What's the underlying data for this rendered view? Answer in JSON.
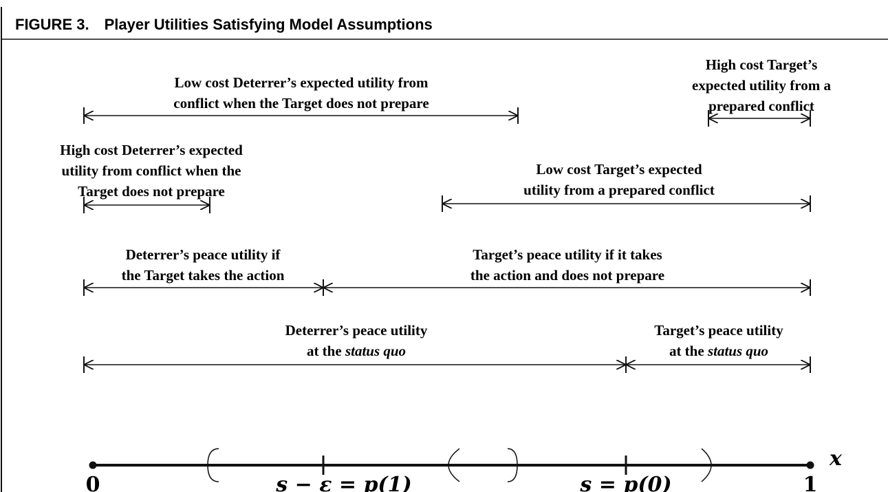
{
  "title": "FIGURE 3. Player Utilities Satisfying Model Assumptions",
  "annotations": [
    {
      "lines": [
        [
          "Low cost Deterrer’s expected utility from"
        ],
        [
          "conflict when the Target does not prepare"
        ]
      ]
    },
    {
      "lines": [
        [
          "High cost Target’s"
        ],
        [
          "expected utility from a"
        ],
        [
          "prepared conflict"
        ]
      ]
    },
    {
      "lines": [
        [
          "High cost Deterrer’s expected"
        ],
        [
          "utility from conflict when the"
        ],
        [
          "Target does not prepare"
        ]
      ]
    },
    {
      "lines": [
        [
          "Low cost Target’s expected"
        ],
        [
          "utility from a prepared conflict"
        ]
      ]
    },
    {
      "lines": [
        [
          "Deterrer’s peace utility if"
        ],
        [
          "the Target takes the action"
        ]
      ]
    },
    {
      "lines": [
        [
          "Target’s peace utility if it takes"
        ],
        [
          "the action and does not prepare"
        ]
      ]
    },
    {
      "lines": [
        [
          "Deterrer’s peace utility"
        ],
        [
          "at the ",
          "status quo"
        ]
      ]
    },
    {
      "lines": [
        [
          "Target’s peace utility"
        ],
        [
          "at the ",
          "status quo"
        ]
      ]
    }
  ],
  "axis": {
    "start": "0",
    "end": "1",
    "variable": "x",
    "tick1": "s − ε = p(1)",
    "tick2": "s = p(0)"
  }
}
